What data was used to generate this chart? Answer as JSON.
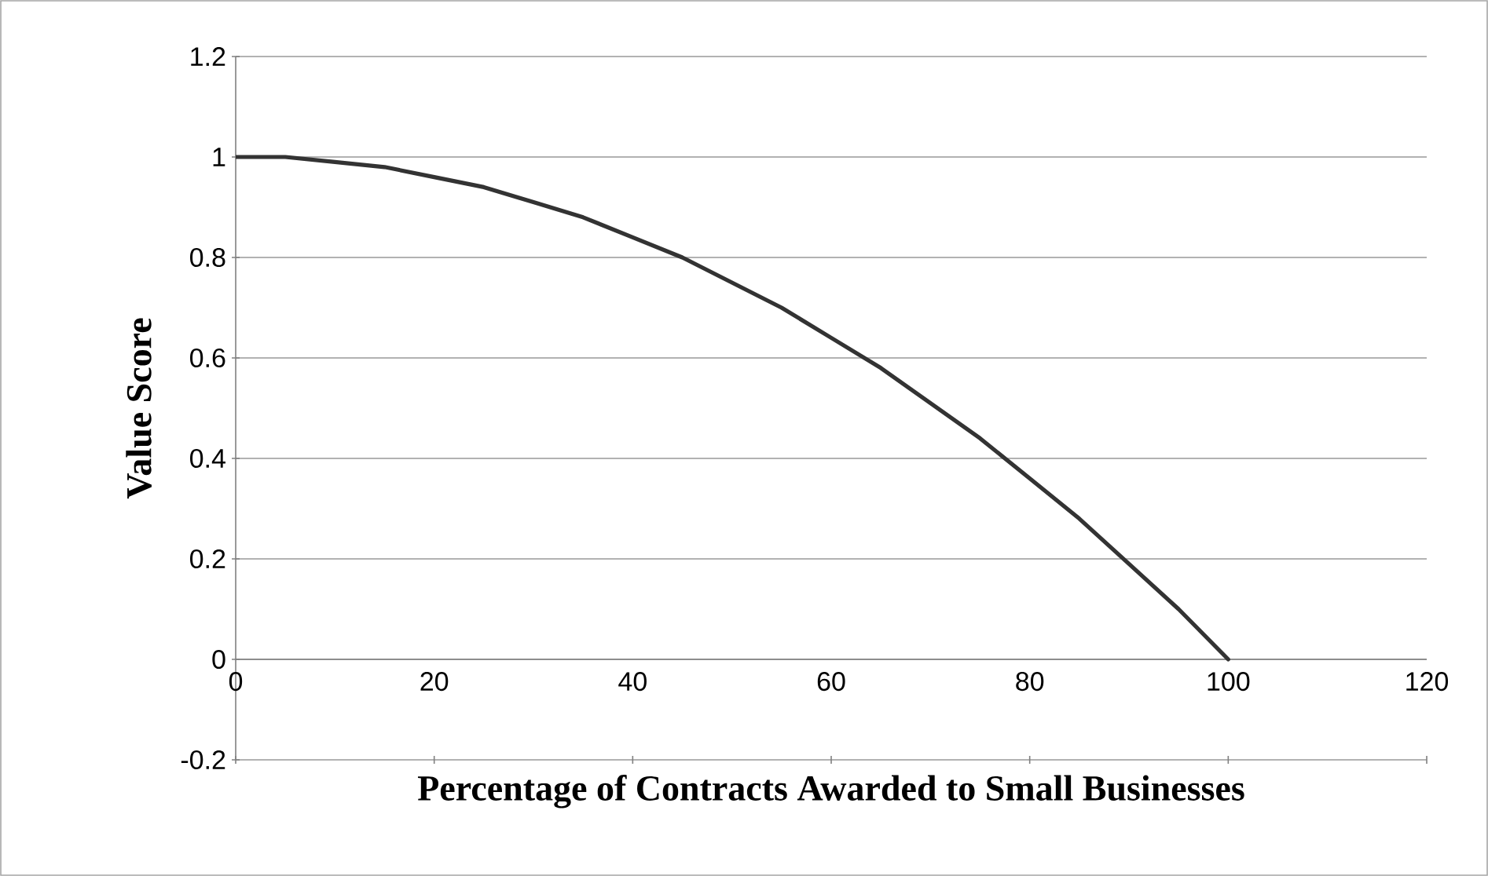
{
  "chart_data": {
    "type": "line",
    "xlabel": "Percentage of Contracts Awarded to Small Businesses",
    "ylabel": "Value Score",
    "x": [
      0,
      5,
      10,
      15,
      20,
      25,
      30,
      35,
      40,
      45,
      50,
      55,
      60,
      65,
      70,
      75,
      80,
      85,
      90,
      95,
      100
    ],
    "series": [
      {
        "color": "#333333",
        "values": [
          1,
          1.0,
          0.99,
          0.98,
          0.96,
          0.94,
          0.91,
          0.88,
          0.84,
          0.8,
          0.75,
          0.7,
          0.64,
          0.58,
          0.51,
          0.44,
          0.36,
          0.28,
          0.19,
          0.1,
          0
        ]
      }
    ],
    "xlim": [
      0,
      120
    ],
    "xticks": [
      0,
      20,
      40,
      60,
      80,
      100,
      120
    ],
    "ylim": [
      -0.2,
      1.2
    ],
    "yticks": [
      -0.2,
      0,
      0.2,
      0.4,
      0.6,
      0.8,
      1,
      1.2
    ],
    "grid": "y",
    "marker": "none",
    "line_style": "solid"
  }
}
